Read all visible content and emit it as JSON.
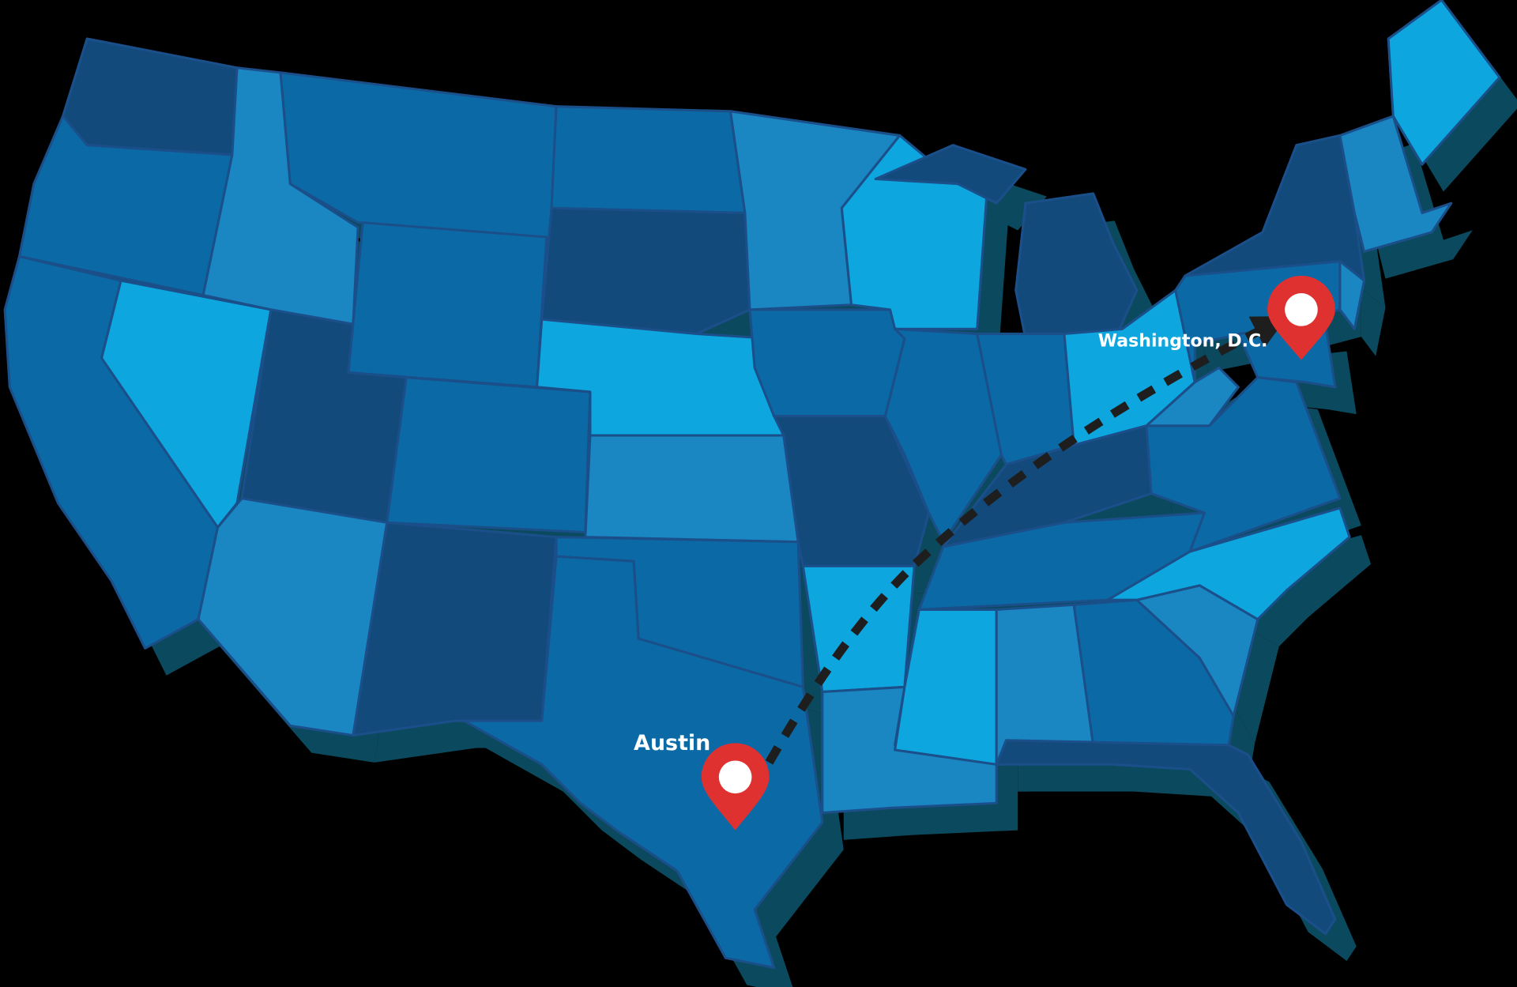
{
  "colors": {
    "background": "#000000",
    "shadow": "#0b4a5e",
    "dark": "#134a7c",
    "mid": "#0b6aa6",
    "medium": "#1a86c2",
    "light": "#0ea6de",
    "pin": "#e03131",
    "pin_center": "#ffffff",
    "route": "#1e1e1e"
  },
  "locations": [
    {
      "name": "Austin",
      "icon": "map-pin-icon"
    },
    {
      "name": "Washington, D.C.",
      "icon": "map-pin-icon"
    }
  ],
  "route": {
    "from": "Austin",
    "to": "Washington, D.C.",
    "style": "dashed-arrow"
  }
}
